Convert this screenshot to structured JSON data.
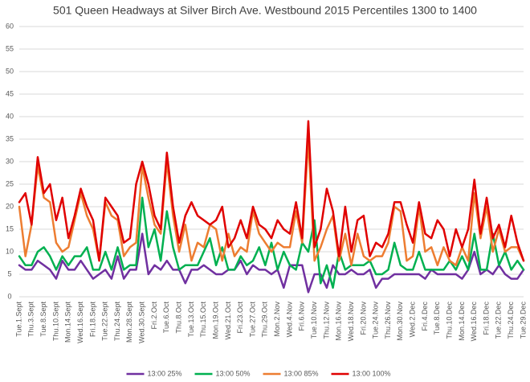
{
  "chart_data": {
    "type": "line",
    "title": "501 Queen Headways at Silver Birch Ave. Westbound 2015 Percentiles 1300 to 1400",
    "categories": [
      "Tue.1.Sept",
      null,
      "Thu.3.Sept",
      null,
      "Tue.8.Sept",
      null,
      "Thu.10.Sept",
      null,
      "Mon.14.Sept",
      null,
      "Wed.16.Sept",
      null,
      "Fri.18.Sept",
      null,
      "Tue.22.Sept",
      null,
      "Thu.24.Sept",
      null,
      "Mon.28.Sept",
      null,
      "Wed.30.Sept",
      null,
      "Fri.2.Oct",
      null,
      "Tue.6.Oct",
      null,
      "Thu.8.Oct",
      null,
      "Tue.13.Oct",
      null,
      "Thu.15.Oct",
      null,
      "Mon.19.Oct",
      null,
      "Wed.21.Oct",
      null,
      "Fri.23.Oct",
      null,
      "Tue.27.Oct",
      null,
      "Thu.29.Oct",
      null,
      "Mon.2.Nov",
      null,
      "Wed.4.Nov",
      null,
      "Fri.6.Nov",
      null,
      "Tue.10.Nov",
      null,
      "Thu.12.Nov",
      null,
      "Mon.16.Nov",
      null,
      "Wed.18.Nov",
      null,
      "Fri.20.Nov",
      null,
      "Tue.24.Nov",
      null,
      "Thu.26.Nov",
      null,
      "Mon.30.Nov",
      null,
      "Wed.2.Dec",
      null,
      "Fri.4.Dec",
      null,
      "Tue.8.Dec",
      null,
      "Thu.10.Dec",
      null,
      "Mon.14.Dec",
      null,
      "Wed.16.Dec",
      null,
      "Fri.18.Dec",
      null,
      "Tue.22.Dec",
      null,
      "Thu.24.Dec",
      null,
      "Tue.29.Dec"
    ],
    "series": [
      {
        "name": "13:00 25%",
        "color": "#7030a0",
        "values": [
          7,
          6,
          6,
          8,
          7,
          6,
          4,
          8,
          6,
          6,
          8,
          6,
          4,
          5,
          6,
          4,
          9,
          4,
          6,
          6,
          14,
          5,
          7,
          6,
          8,
          6,
          6,
          3,
          6,
          6,
          7,
          6,
          5,
          5,
          6,
          6,
          8,
          5,
          7,
          6,
          6,
          5,
          6,
          2,
          7,
          7,
          7,
          1,
          5,
          5,
          2,
          7,
          5,
          5,
          6,
          5,
          5,
          6,
          2,
          4,
          4,
          5,
          5,
          5,
          5,
          5,
          4,
          6,
          5,
          5,
          5,
          5,
          4,
          6,
          10,
          5,
          6,
          5,
          7,
          5,
          4,
          4,
          6
        ]
      },
      {
        "name": "13:00 50%",
        "color": "#00b050",
        "values": [
          9,
          7,
          7,
          10,
          11,
          9,
          6,
          9,
          7,
          9,
          9,
          11,
          6,
          6,
          10,
          6,
          11,
          6,
          7,
          7,
          22,
          11,
          15,
          8,
          19,
          11,
          6,
          7,
          7,
          7,
          10,
          13,
          7,
          11,
          6,
          6,
          9,
          7,
          8,
          11,
          7,
          12,
          6,
          10,
          7,
          6,
          12,
          10,
          17,
          3,
          7,
          2,
          10,
          6,
          7,
          7,
          7,
          8,
          5,
          5,
          6,
          12,
          7,
          6,
          6,
          10,
          6,
          6,
          6,
          6,
          8,
          6,
          9,
          6,
          14,
          6,
          6,
          14,
          7,
          10,
          6,
          8,
          6
        ]
      },
      {
        "name": "13:00 85%",
        "color": "#ed7d31",
        "values": [
          20,
          9,
          16,
          29,
          22,
          21,
          12,
          10,
          11,
          17,
          23,
          18,
          15,
          8,
          21,
          18,
          17,
          9,
          11,
          12,
          29,
          22,
          16,
          14,
          30,
          18,
          10,
          16,
          8,
          12,
          11,
          16,
          15,
          8,
          14,
          9,
          11,
          10,
          19,
          14,
          12,
          10,
          12,
          11,
          11,
          19,
          12,
          35,
          8,
          11,
          15,
          18,
          8,
          14,
          7,
          14,
          9,
          8,
          9,
          9,
          12,
          20,
          19,
          8,
          9,
          20,
          10,
          11,
          7,
          11,
          8,
          7,
          11,
          8,
          23,
          13,
          20,
          10,
          15,
          10,
          11,
          11,
          8
        ]
      },
      {
        "name": "13:00 100%",
        "color": "#e00000",
        "values": [
          21,
          23,
          16,
          31,
          23,
          25,
          17,
          22,
          13,
          18,
          24,
          20,
          17,
          8,
          22,
          20,
          18,
          12,
          13,
          25,
          30,
          25,
          18,
          15,
          32,
          20,
          12,
          18,
          21,
          18,
          17,
          16,
          17,
          20,
          11,
          13,
          17,
          13,
          20,
          16,
          15,
          13,
          17,
          15,
          14,
          21,
          13,
          39,
          11,
          15,
          24,
          19,
          9,
          20,
          10,
          17,
          18,
          9,
          12,
          11,
          14,
          21,
          21,
          16,
          12,
          21,
          14,
          13,
          17,
          15,
          9,
          15,
          11,
          15,
          26,
          14,
          22,
          13,
          16,
          11,
          18,
          12,
          8
        ]
      }
    ],
    "ylim": [
      0,
      60
    ],
    "yticks": [
      0,
      5,
      10,
      15,
      20,
      25,
      30,
      35,
      40,
      45,
      50,
      55,
      60
    ],
    "grid": true,
    "legend": "bottom"
  }
}
